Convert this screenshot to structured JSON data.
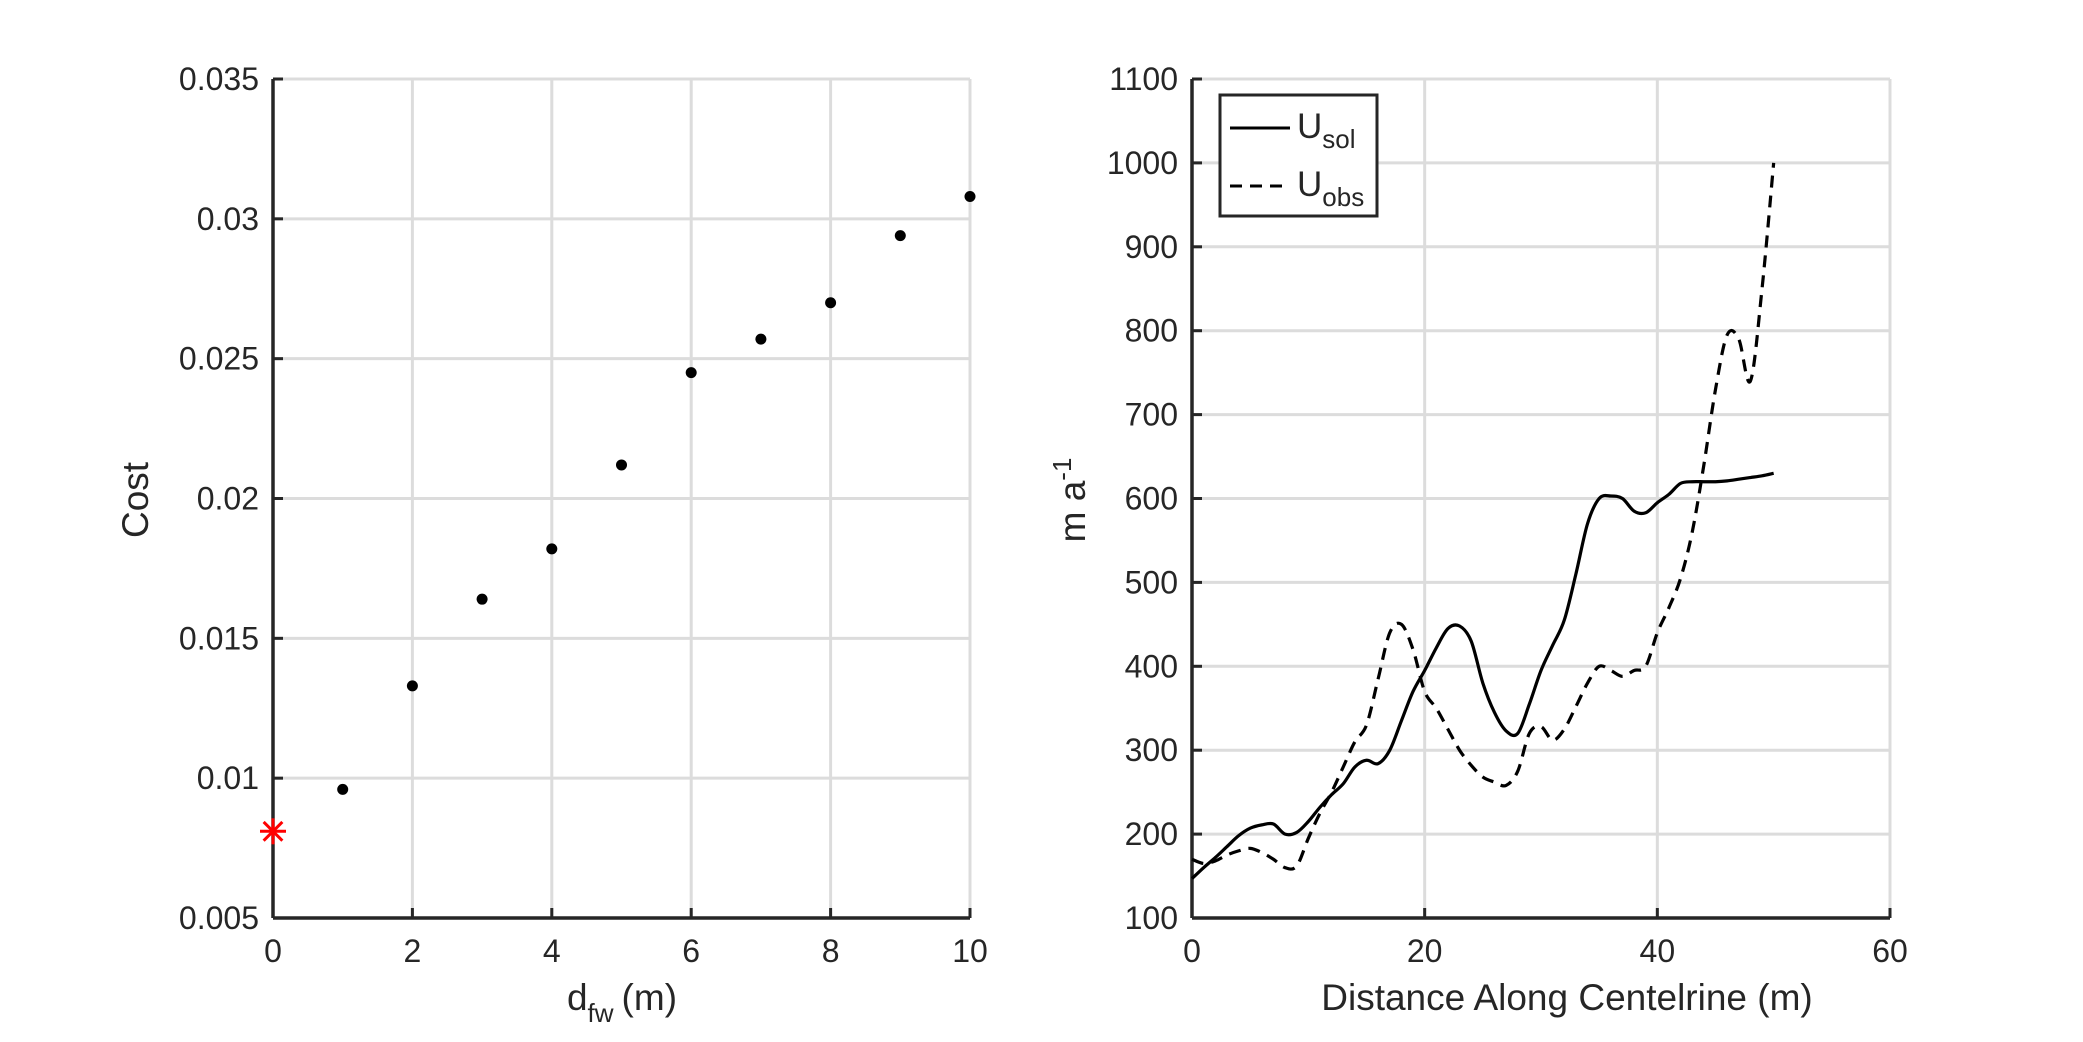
{
  "chart_data": [
    {
      "type": "scatter",
      "title": "",
      "xlabel": "d",
      "xlabel_subscript": "fw",
      "xlabel_unit": "(m)",
      "ylabel": "Cost",
      "xlim": [
        0,
        10
      ],
      "ylim": [
        0.005,
        0.035
      ],
      "x_ticks": [
        0,
        2,
        4,
        6,
        8,
        10
      ],
      "x_tick_labels": [
        "0",
        "2",
        "4",
        "6",
        "8",
        "10"
      ],
      "y_ticks": [
        0.005,
        0.01,
        0.015,
        0.02,
        0.025,
        0.03,
        0.035
      ],
      "y_tick_labels": [
        "0.005",
        "0.01",
        "0.015",
        "0.02",
        "0.025",
        "0.03",
        "0.035"
      ],
      "grid": true,
      "series": [
        {
          "marker": "dot",
          "color": "#000000",
          "x": [
            1,
            2,
            3,
            4,
            5,
            6,
            7,
            8,
            9,
            10
          ],
          "y": [
            0.0096,
            0.0133,
            0.0164,
            0.0182,
            0.0212,
            0.0245,
            0.0257,
            0.027,
            0.0294,
            0.0308
          ]
        },
        {
          "marker": "asterisk",
          "color": "#ff0000",
          "x": [
            0
          ],
          "y": [
            0.0081
          ]
        }
      ]
    },
    {
      "type": "line",
      "title": "",
      "xlabel": "Distance Along Centelrine (m)",
      "ylabel": "m a",
      "ylabel_superscript": "-1",
      "xlim": [
        0,
        60
      ],
      "ylim": [
        100,
        1100
      ],
      "x_ticks": [
        0,
        20,
        40,
        60
      ],
      "x_tick_labels": [
        "0",
        "20",
        "40",
        "60"
      ],
      "y_ticks": [
        100,
        200,
        300,
        400,
        500,
        600,
        700,
        800,
        900,
        1000,
        1100
      ],
      "y_tick_labels": [
        "100",
        "200",
        "300",
        "400",
        "500",
        "600",
        "700",
        "800",
        "900",
        "1000",
        "1100"
      ],
      "grid": true,
      "legend_position": "top-left",
      "series": [
        {
          "name": "U",
          "subscript": "sol",
          "style": "solid",
          "color": "#000000",
          "x": [
            0,
            1,
            2,
            3,
            4,
            5,
            6,
            7,
            8,
            9,
            10,
            11,
            12,
            13,
            14,
            15,
            16,
            17,
            18,
            19,
            20,
            21,
            22,
            23,
            24,
            25,
            26,
            27,
            28,
            29,
            30,
            31,
            32,
            33,
            34,
            35,
            36,
            37,
            38,
            39,
            40,
            41,
            42,
            43,
            44,
            45,
            46,
            47,
            48,
            49,
            50
          ],
          "y": [
            147,
            160,
            172,
            185,
            198,
            207,
            211,
            212,
            200,
            202,
            215,
            232,
            247,
            260,
            280,
            288,
            284,
            300,
            335,
            370,
            395,
            422,
            445,
            448,
            430,
            380,
            345,
            323,
            320,
            355,
            395,
            425,
            455,
            510,
            570,
            600,
            603,
            600,
            585,
            583,
            595,
            605,
            618,
            620,
            620,
            620,
            621,
            623,
            625,
            627,
            630
          ]
        },
        {
          "name": "U",
          "subscript": "obs",
          "style": "dashed",
          "color": "#000000",
          "x": [
            0,
            1,
            2,
            3,
            4,
            5,
            6,
            7,
            8,
            9,
            10,
            11,
            12,
            13,
            14,
            15,
            16,
            17,
            18,
            19,
            20,
            21,
            22,
            23,
            24,
            25,
            26,
            27,
            28,
            29,
            30,
            31,
            32,
            33,
            34,
            35,
            36,
            37,
            38,
            39,
            40,
            41,
            42,
            43,
            44,
            45,
            46,
            47,
            48,
            49,
            50
          ],
          "y": [
            170,
            165,
            168,
            175,
            180,
            183,
            178,
            170,
            160,
            162,
            195,
            225,
            250,
            280,
            310,
            330,
            385,
            440,
            450,
            420,
            370,
            350,
            325,
            300,
            282,
            268,
            262,
            258,
            275,
            320,
            328,
            312,
            325,
            352,
            380,
            400,
            395,
            388,
            395,
            400,
            440,
            470,
            505,
            560,
            640,
            730,
            795,
            790,
            740,
            850,
            1000
          ]
        }
      ]
    }
  ]
}
